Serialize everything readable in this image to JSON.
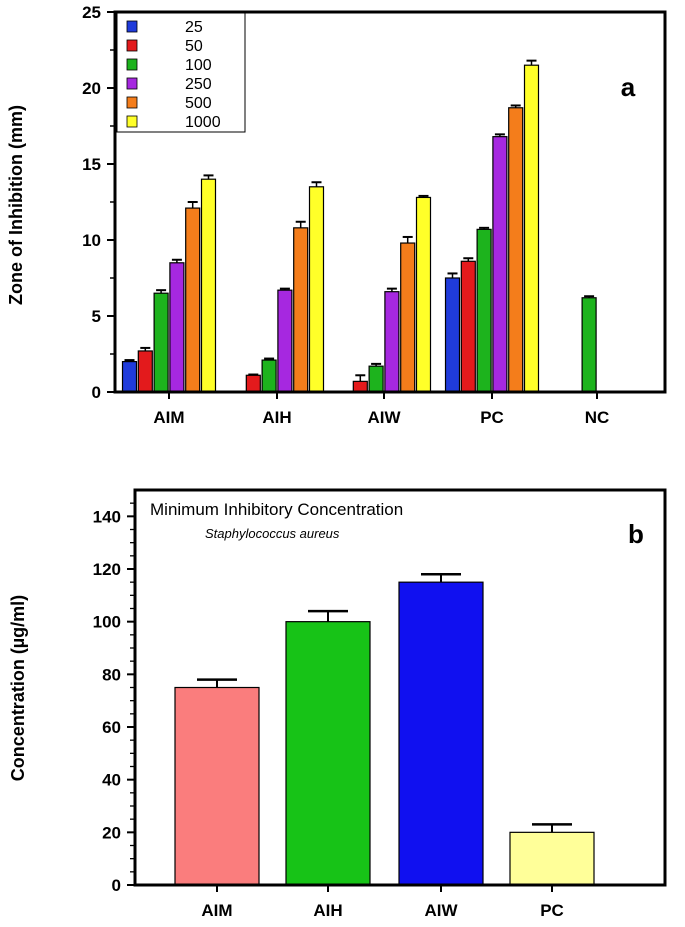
{
  "chart_data": [
    {
      "type": "bar",
      "panel_label": "a",
      "title": "",
      "xlabel": "",
      "ylabel": "Zone of Inhibition (mm)",
      "ylim": [
        0,
        25
      ],
      "yticks": [
        "0",
        "5",
        "10",
        "15",
        "20",
        "25"
      ],
      "categories": [
        "AIM",
        "AIH",
        "AIW",
        "PC",
        "NC"
      ],
      "legend_position": "top-left",
      "series": [
        {
          "name": "25",
          "color": "#1f3bdb",
          "values": [
            2.0,
            0,
            0,
            7.5,
            0
          ],
          "errors": [
            0.1,
            0,
            0,
            0.3,
            0
          ]
        },
        {
          "name": "50",
          "color": "#e31a1c",
          "values": [
            2.7,
            1.1,
            0.7,
            8.6,
            0
          ],
          "errors": [
            0.2,
            0.05,
            0.4,
            0.2,
            0
          ]
        },
        {
          "name": "100",
          "color": "#1db31d",
          "values": [
            6.5,
            2.1,
            1.7,
            10.7,
            6.2
          ],
          "errors": [
            0.2,
            0.1,
            0.15,
            0.1,
            0.1
          ]
        },
        {
          "name": "250",
          "color": "#a628e0",
          "values": [
            8.5,
            6.7,
            6.6,
            16.8,
            0
          ],
          "errors": [
            0.2,
            0.1,
            0.2,
            0.15,
            0
          ]
        },
        {
          "name": "500",
          "color": "#f47d1b",
          "values": [
            12.1,
            10.8,
            9.8,
            18.7,
            0
          ],
          "errors": [
            0.4,
            0.4,
            0.4,
            0.15,
            0
          ]
        },
        {
          "name": "1000",
          "color": "#ffff29",
          "values": [
            14.0,
            13.5,
            12.8,
            21.5,
            0
          ],
          "errors": [
            0.25,
            0.3,
            0.1,
            0.3,
            0
          ]
        }
      ]
    },
    {
      "type": "bar",
      "panel_label": "b",
      "title": "Minimum Inhibitory Concentration",
      "subtitle": "Staphylococcus aureus",
      "xlabel": "",
      "ylabel": "Concentration (µg/ml)",
      "ylim": [
        0,
        150
      ],
      "yticks": [
        "0",
        "20",
        "40",
        "60",
        "80",
        "100",
        "120",
        "140"
      ],
      "categories": [
        "AIM",
        "AIH",
        "AIW",
        "PC"
      ],
      "values": [
        75,
        100,
        115,
        20
      ],
      "errors": [
        3,
        4,
        3,
        3
      ],
      "colors": [
        "#fa7d7d",
        "#17c317",
        "#1010f0",
        "#ffff99"
      ]
    }
  ]
}
